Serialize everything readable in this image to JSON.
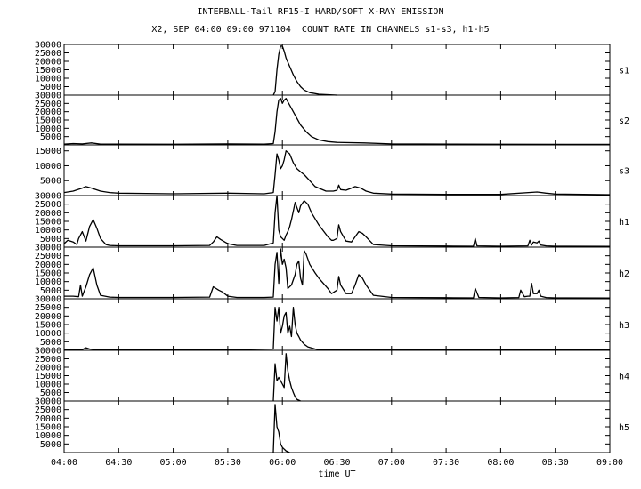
{
  "title": "INTERBALL-Tail RF15-I HARD/SOFT X-RAY EMISSION",
  "subtitle": "X2, SEP 04:00 09:00 971104  COUNT RATE IN CHANNELS s1-s3, h1-h5",
  "chart_data": [
    {
      "type": "line",
      "name": "s1",
      "ylim": [
        0,
        30000
      ],
      "yticks": [
        "5000",
        "10000",
        "15000",
        "20000",
        "25000",
        "30000"
      ],
      "x": [
        "05:55",
        "05:56",
        "05:57",
        "05:58",
        "05:59",
        "06:00",
        "06:01",
        "06:02",
        "06:04",
        "06:06",
        "06:08",
        "06:10",
        "06:12",
        "06:15",
        "06:20",
        "06:30"
      ],
      "values": [
        0,
        2000,
        15000,
        24000,
        29000,
        29000,
        26000,
        22000,
        17000,
        12000,
        8000,
        5000,
        3000,
        1500,
        500,
        0
      ]
    },
    {
      "type": "line",
      "name": "s2",
      "ylim": [
        0,
        30000
      ],
      "yticks": [
        "5000",
        "10000",
        "15000",
        "20000",
        "25000",
        "30000"
      ],
      "x": [
        "04:00",
        "04:05",
        "04:10",
        "04:15",
        "04:20",
        "05:00",
        "05:30",
        "05:50",
        "05:55",
        "05:56",
        "05:57",
        "05:58",
        "05:59",
        "06:00",
        "06:01",
        "06:02",
        "06:03",
        "06:05",
        "06:08",
        "06:10",
        "06:13",
        "06:16",
        "06:20",
        "06:25",
        "06:30",
        "06:45",
        "07:00",
        "08:00",
        "09:00"
      ],
      "values": [
        500,
        800,
        600,
        1200,
        500,
        400,
        600,
        500,
        800,
        8000,
        20000,
        27000,
        28000,
        25000,
        27000,
        28000,
        26000,
        22000,
        16000,
        12000,
        8000,
        5000,
        3000,
        2000,
        1500,
        1200,
        600,
        400,
        300
      ]
    },
    {
      "type": "line",
      "name": "s3",
      "ylim": [
        0,
        17000
      ],
      "yticks": [
        "5000",
        "10000",
        "15000"
      ],
      "x": [
        "04:00",
        "04:05",
        "04:10",
        "04:12",
        "04:15",
        "04:20",
        "04:25",
        "04:30",
        "05:00",
        "05:30",
        "05:50",
        "05:55",
        "05:56",
        "05:57",
        "05:58",
        "05:59",
        "06:00",
        "06:01",
        "06:02",
        "06:04",
        "06:06",
        "06:08",
        "06:10",
        "06:12",
        "06:15",
        "06:18",
        "06:20",
        "06:24",
        "06:28",
        "06:30",
        "06:31",
        "06:32",
        "06:35",
        "06:38",
        "06:40",
        "06:43",
        "06:46",
        "06:50",
        "07:00",
        "07:30",
        "08:00",
        "08:20",
        "08:25",
        "08:30",
        "09:00"
      ],
      "values": [
        1000,
        1500,
        2500,
        3000,
        2500,
        1500,
        1000,
        800,
        600,
        800,
        600,
        1000,
        7000,
        14000,
        12000,
        9000,
        10000,
        12000,
        15000,
        14000,
        11000,
        9000,
        8000,
        7000,
        5000,
        3000,
        2500,
        1500,
        1500,
        1800,
        3500,
        2000,
        1800,
        2500,
        3000,
        2500,
        1500,
        800,
        500,
        400,
        400,
        1200,
        800,
        500,
        300
      ]
    },
    {
      "type": "line",
      "name": "h1",
      "ylim": [
        0,
        30000
      ],
      "yticks": [
        "5000",
        "10000",
        "15000",
        "20000",
        "25000",
        "30000"
      ],
      "x": [
        "04:00",
        "04:02",
        "04:05",
        "04:07",
        "04:08",
        "04:10",
        "04:12",
        "04:14",
        "04:16",
        "04:18",
        "04:20",
        "04:23",
        "04:25",
        "04:30",
        "05:00",
        "05:20",
        "05:22",
        "05:24",
        "05:26",
        "05:30",
        "05:35",
        "05:50",
        "05:55",
        "05:56",
        "05:57",
        "05:58",
        "05:59",
        "06:00",
        "06:01",
        "06:02",
        "06:03",
        "06:04",
        "06:05",
        "06:06",
        "06:07",
        "06:09",
        "06:10",
        "06:12",
        "06:14",
        "06:16",
        "06:20",
        "06:25",
        "06:27",
        "06:28",
        "06:30",
        "06:31",
        "06:32",
        "06:35",
        "06:38",
        "06:40",
        "06:42",
        "06:44",
        "06:46",
        "06:50",
        "07:00",
        "07:30",
        "07:45",
        "07:46",
        "07:47",
        "08:00",
        "08:15",
        "08:16",
        "08:17",
        "08:18",
        "08:20",
        "08:21",
        "08:22",
        "08:25",
        "08:30",
        "09:00"
      ],
      "values": [
        2000,
        4000,
        3000,
        1500,
        5000,
        9000,
        3500,
        12000,
        16000,
        11000,
        5000,
        1500,
        1000,
        800,
        800,
        1000,
        3000,
        6000,
        4500,
        2000,
        1000,
        1000,
        2500,
        20000,
        30000,
        10000,
        6000,
        5000,
        4000,
        7000,
        9000,
        12000,
        16000,
        21000,
        26000,
        20000,
        24000,
        27000,
        25000,
        20000,
        13000,
        6000,
        4000,
        4000,
        5000,
        13000,
        9000,
        3500,
        3000,
        6000,
        9000,
        8000,
        6000,
        1500,
        800,
        600,
        500,
        5000,
        700,
        500,
        700,
        4000,
        1200,
        3000,
        2500,
        3500,
        1200,
        700,
        500,
        400
      ]
    },
    {
      "type": "line",
      "name": "h2",
      "ylim": [
        0,
        30000
      ],
      "yticks": [
        "5000",
        "10000",
        "15000",
        "20000",
        "25000",
        "30000"
      ],
      "x": [
        "04:00",
        "04:05",
        "04:08",
        "04:09",
        "04:10",
        "04:12",
        "04:14",
        "04:16",
        "04:18",
        "04:20",
        "04:25",
        "04:30",
        "05:00",
        "05:20",
        "05:22",
        "05:25",
        "05:27",
        "05:30",
        "05:35",
        "05:50",
        "05:55",
        "05:56",
        "05:57",
        "05:58",
        "05:59",
        "06:00",
        "06:01",
        "06:02",
        "06:03",
        "06:05",
        "06:07",
        "06:08",
        "06:09",
        "06:10",
        "06:11",
        "06:12",
        "06:13",
        "06:15",
        "06:18",
        "06:20",
        "06:25",
        "06:27",
        "06:30",
        "06:31",
        "06:32",
        "06:35",
        "06:38",
        "06:40",
        "06:42",
        "06:44",
        "06:46",
        "06:50",
        "07:00",
        "07:30",
        "07:45",
        "07:46",
        "07:48",
        "08:00",
        "08:10",
        "08:11",
        "08:13",
        "08:15",
        "08:16",
        "08:17",
        "08:18",
        "08:20",
        "08:21",
        "08:22",
        "08:25",
        "08:30",
        "09:00"
      ],
      "values": [
        1500,
        1500,
        1200,
        8000,
        1500,
        7000,
        14000,
        18000,
        8000,
        2000,
        1000,
        800,
        800,
        1000,
        7000,
        5000,
        4000,
        1500,
        800,
        800,
        1000,
        20000,
        27000,
        9000,
        29000,
        20000,
        23000,
        18000,
        6000,
        8000,
        14000,
        20000,
        22000,
        12000,
        8000,
        28000,
        26000,
        20000,
        15000,
        12000,
        6000,
        3000,
        5000,
        13000,
        8000,
        3000,
        3000,
        8000,
        14000,
        12000,
        8000,
        2000,
        800,
        600,
        500,
        6000,
        800,
        500,
        700,
        5000,
        1200,
        1500,
        1500,
        9000,
        3000,
        3000,
        5000,
        1500,
        700,
        500,
        400
      ]
    },
    {
      "type": "line",
      "name": "h3",
      "ylim": [
        0,
        30000
      ],
      "yticks": [
        "5000",
        "10000",
        "15000",
        "20000",
        "25000",
        "30000"
      ],
      "x": [
        "04:00",
        "04:10",
        "04:12",
        "04:14",
        "04:18",
        "04:30",
        "05:00",
        "05:30",
        "05:55",
        "05:56",
        "05:57",
        "05:58",
        "05:59",
        "06:00",
        "06:01",
        "06:02",
        "06:03",
        "06:04",
        "06:05",
        "06:06",
        "06:07",
        "06:08",
        "06:09",
        "06:10",
        "06:12",
        "06:14",
        "06:18",
        "06:20",
        "06:30",
        "06:40",
        "07:00",
        "08:00",
        "09:00"
      ],
      "values": [
        300,
        400,
        1500,
        800,
        300,
        300,
        300,
        400,
        800,
        25000,
        17000,
        25000,
        10000,
        14000,
        20000,
        22000,
        10000,
        14000,
        8000,
        25000,
        15000,
        10000,
        8000,
        6000,
        3500,
        2000,
        800,
        400,
        300,
        600,
        300,
        300,
        300
      ]
    },
    {
      "type": "line",
      "name": "h4",
      "ylim": [
        0,
        30000
      ],
      "yticks": [
        "5000",
        "10000",
        "15000",
        "20000",
        "25000",
        "30000"
      ],
      "x": [
        "05:55",
        "05:56",
        "05:57",
        "05:58",
        "05:59",
        "06:00",
        "06:01",
        "06:02",
        "06:03",
        "06:04",
        "06:05",
        "06:06",
        "06:07",
        "06:08",
        "06:10"
      ],
      "values": [
        0,
        22000,
        12000,
        14000,
        12000,
        10000,
        8000,
        28000,
        18000,
        12000,
        8000,
        5000,
        2500,
        1000,
        0
      ]
    },
    {
      "type": "line",
      "name": "h5",
      "ylim": [
        0,
        30000
      ],
      "yticks": [
        "5000",
        "10000",
        "15000",
        "20000",
        "25000",
        "30000"
      ],
      "x": [
        "05:55",
        "05:56",
        "05:57",
        "05:58",
        "05:59",
        "06:00",
        "06:02",
        "06:04"
      ],
      "values": [
        0,
        28000,
        15000,
        12000,
        5000,
        3000,
        1000,
        0
      ]
    }
  ],
  "xaxis": {
    "label": "time UT",
    "ticks": [
      "04:00",
      "04:30",
      "05:00",
      "05:30",
      "06:00",
      "06:30",
      "07:00",
      "07:30",
      "08:00",
      "08:30",
      "09:00"
    ],
    "range": [
      "04:00",
      "09:00"
    ]
  }
}
